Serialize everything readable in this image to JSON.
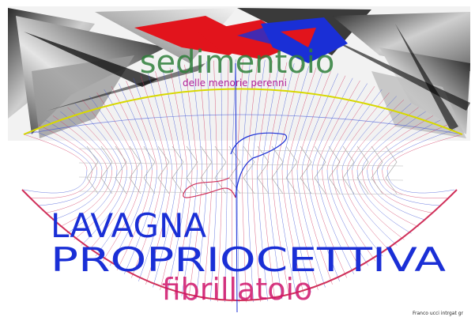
{
  "poster": {
    "title_top": "sedimentoio",
    "subtitle_top": "delle menorie perenni",
    "title_main_1": "LAVAGNA",
    "title_main_2": "PROPRIOCETTIVA",
    "title_bottom": "fibrillatoio",
    "credit": "Franco ucci intrgat gr"
  },
  "colors": {
    "background": "#ffffff",
    "grid_blue": "#3a4fd6",
    "grid_red": "#d0305a",
    "banner_red": "#e2141c",
    "banner_blue": "#1a2fd6",
    "sedimentoio": "#2f7f3a",
    "memorie": "#b0209a",
    "main_title": "#1a2fd6",
    "fibrillatoio": "#d0136a",
    "rim_yellow": "#d8d800"
  }
}
